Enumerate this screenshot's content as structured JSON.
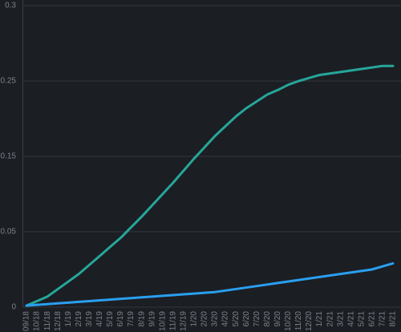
{
  "chart_data": {
    "type": "line",
    "categories": [
      "09/18",
      "10/18",
      "11/18",
      "12/18",
      "1/19",
      "2/19",
      "3/19",
      "4/19",
      "5/19",
      "6/19",
      "7/19",
      "8/19",
      "9/19",
      "10/19",
      "11/19",
      "12/19",
      "1/20",
      "2/20",
      "3/20",
      "4/20",
      "5/20",
      "6/20",
      "7/20",
      "8/20",
      "9/20",
      "10/20",
      "11/20",
      "12/20",
      "1/21",
      "2/21",
      "3/21",
      "4/21",
      "5/21",
      "6/21",
      "7/21",
      "8/21"
    ],
    "series": [
      {
        "color": "#26a69a",
        "values": [
          0.001,
          0.004,
          0.007,
          0.012,
          0.017,
          0.022,
          0.028,
          0.034,
          0.04,
          0.046,
          0.056,
          0.07,
          0.085,
          0.1,
          0.115,
          0.131,
          0.147,
          0.162,
          0.177,
          0.19,
          0.203,
          0.214,
          0.223,
          0.232,
          0.238,
          0.245,
          0.25,
          0.252,
          0.254,
          0.255,
          0.256,
          0.257,
          0.258,
          0.259,
          0.26,
          0.26
        ]
      },
      {
        "color": "#2a9ff0",
        "values": [
          0.001,
          0.0015,
          0.002,
          0.0025,
          0.003,
          0.0035,
          0.004,
          0.0045,
          0.005,
          0.0055,
          0.006,
          0.0065,
          0.007,
          0.0075,
          0.008,
          0.0085,
          0.009,
          0.0095,
          0.01,
          0.011,
          0.012,
          0.013,
          0.014,
          0.015,
          0.016,
          0.017,
          0.018,
          0.019,
          0.02,
          0.021,
          0.022,
          0.023,
          0.024,
          0.025,
          0.027,
          0.029
        ]
      }
    ],
    "ylim": [
      0,
      0.3
    ],
    "yticks": [
      0,
      0.05,
      0.15,
      0.25,
      0.3
    ],
    "grid": true
  }
}
